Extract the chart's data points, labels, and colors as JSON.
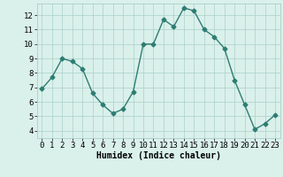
{
  "x": [
    0,
    1,
    2,
    3,
    4,
    5,
    6,
    7,
    8,
    9,
    10,
    11,
    12,
    13,
    14,
    15,
    16,
    17,
    18,
    19,
    20,
    21,
    22,
    23
  ],
  "y": [
    6.9,
    7.7,
    9.0,
    8.8,
    8.3,
    6.6,
    5.8,
    5.2,
    5.5,
    6.7,
    10.0,
    10.0,
    11.7,
    11.2,
    12.5,
    12.3,
    11.0,
    10.5,
    9.7,
    7.5,
    5.8,
    4.1,
    4.5,
    5.1
  ],
  "line_color": "#2e7d72",
  "marker": "D",
  "markersize": 2.5,
  "linewidth": 1.0,
  "bg_color": "#daf0eb",
  "grid_color": "#aacfc8",
  "xlabel": "Humidex (Indice chaleur)",
  "xlabel_fontsize": 7,
  "tick_fontsize": 6.5,
  "ylim": [
    3.5,
    12.8
  ],
  "xlim": [
    -0.5,
    23.5
  ],
  "yticks": [
    4,
    5,
    6,
    7,
    8,
    9,
    10,
    11,
    12
  ],
  "xticks": [
    0,
    1,
    2,
    3,
    4,
    5,
    6,
    7,
    8,
    9,
    10,
    11,
    12,
    13,
    14,
    15,
    16,
    17,
    18,
    19,
    20,
    21,
    22,
    23
  ]
}
